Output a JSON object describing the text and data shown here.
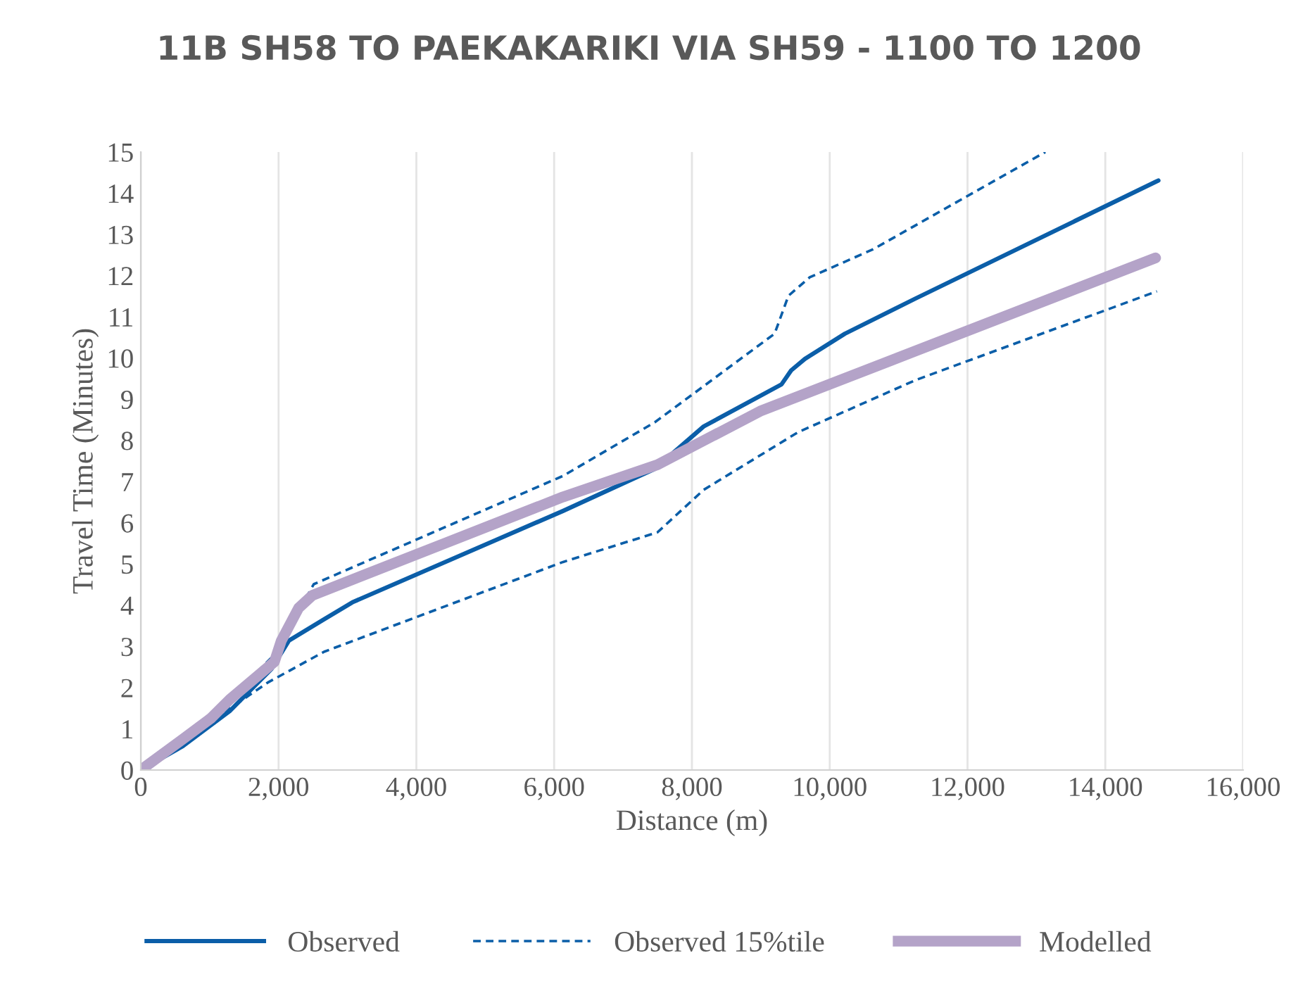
{
  "chart_data": {
    "type": "line",
    "title": "11B SH58 TO PAEKAKARIKI VIA SH59 - 1100 TO 1200",
    "xlabel": "Distance (m)",
    "ylabel": "Travel Time (Minutes)",
    "xlim": [
      0,
      16000
    ],
    "xticks": [
      {
        "value": 0,
        "label": "0"
      },
      {
        "value": 2000,
        "label": "2,000"
      },
      {
        "value": 4000,
        "label": "4,000"
      },
      {
        "value": 6000,
        "label": "6,000"
      },
      {
        "value": 8000,
        "label": "8,000"
      },
      {
        "value": 10000,
        "label": "10,000"
      },
      {
        "value": 12000,
        "label": "12,000"
      },
      {
        "value": 14000,
        "label": "14,000"
      },
      {
        "value": 16000,
        "label": "16,000"
      }
    ],
    "ylim": [
      0,
      15
    ],
    "yticks": [
      0,
      1,
      2,
      3,
      4,
      5,
      6,
      7,
      8,
      9,
      10,
      11,
      12,
      13,
      14,
      15
    ],
    "grid": "x",
    "legend": "bottom",
    "series": [
      {
        "name": "Observed",
        "color": "#0b5ea8",
        "line_style": "solid",
        "x": [
          0,
          610,
          1290,
          1900,
          2150,
          2660,
          3070,
          6130,
          7460,
          8170,
          9300,
          9440,
          9640,
          10220,
          11240,
          14770
        ],
        "values": [
          0,
          0.58,
          1.43,
          2.46,
          3.14,
          3.66,
          4.07,
          6.29,
          7.31,
          8.34,
          9.36,
          9.7,
          9.98,
          10.59,
          11.44,
          14.31
        ]
      },
      {
        "name": "Observed 15%tile",
        "color": "#0b5ea8",
        "line_style": "dashed",
        "x": [
          0,
          610,
          1290,
          1940,
          2510,
          6130,
          7460,
          9200,
          9400,
          9710,
          10630,
          13130
        ],
        "values": [
          0,
          0.75,
          1.71,
          2.8,
          4.51,
          7.14,
          8.44,
          10.59,
          11.51,
          11.96,
          12.64,
          15.0
        ]
      },
      {
        "color": "#0b5ea8",
        "line_style": "dashed",
        "x": [
          0,
          200,
          1840,
          2660,
          6130,
          7500,
          8170,
          9540,
          11240,
          14750
        ],
        "values": [
          0,
          0.24,
          2.12,
          2.87,
          5.05,
          5.77,
          6.8,
          8.2,
          9.46,
          11.62
        ]
      },
      {
        "name": "Modelled",
        "color": "#b4a3c8",
        "line_style": "solid",
        "x": [
          0,
          610,
          1020,
          1290,
          1940,
          2040,
          2290,
          2490,
          6130,
          7500,
          8990,
          14730
        ],
        "values": [
          0,
          0.75,
          1.26,
          1.71,
          2.63,
          3.14,
          3.93,
          4.24,
          6.63,
          7.41,
          8.71,
          12.43
        ]
      }
    ]
  }
}
